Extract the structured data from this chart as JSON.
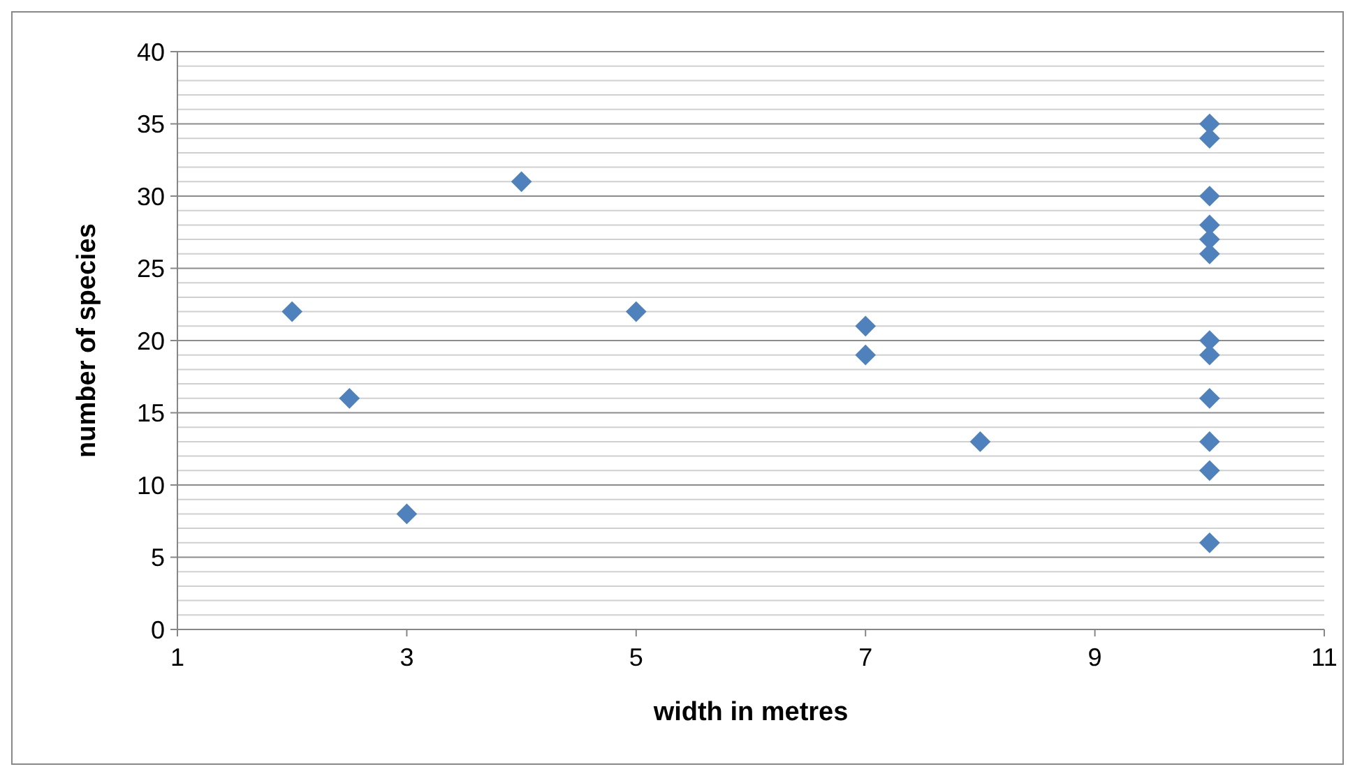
{
  "chart_data": {
    "type": "scatter",
    "xlabel": "width in metres",
    "ylabel": "number of species",
    "x": [
      2,
      2.5,
      3,
      4,
      5,
      7,
      7,
      8,
      10,
      10,
      10,
      10,
      10,
      10,
      10,
      10,
      10,
      10,
      10,
      10
    ],
    "series": [
      {
        "color": "#4f81bd",
        "values": [
          22,
          16,
          8,
          31,
          22,
          21,
          19,
          13,
          35,
          34,
          30,
          28,
          27,
          26,
          20,
          19,
          16,
          13,
          11,
          6
        ]
      }
    ],
    "xlim": [
      1,
      11
    ],
    "xticks": [
      1,
      3,
      5,
      7,
      9,
      11
    ],
    "ylim": [
      0,
      40
    ],
    "yticks": [
      0,
      {
        "value": 1,
        "label": null
      },
      {
        "value": 2,
        "label": null
      },
      {
        "value": 3,
        "label": null
      },
      {
        "value": 4,
        "label": null
      },
      5,
      {
        "value": 6,
        "label": null
      },
      {
        "value": 7,
        "label": null
      },
      {
        "value": 8,
        "label": null
      },
      {
        "value": 9,
        "label": null
      },
      10,
      {
        "value": 11,
        "label": null
      },
      {
        "value": 12,
        "label": null
      },
      {
        "value": 13,
        "label": null
      },
      {
        "value": 14,
        "label": null
      },
      15,
      {
        "value": 16,
        "label": null
      },
      {
        "value": 17,
        "label": null
      },
      {
        "value": 18,
        "label": null
      },
      {
        "value": 19,
        "label": null
      },
      20,
      {
        "value": 21,
        "label": null
      },
      {
        "value": 22,
        "label": null
      },
      {
        "value": 23,
        "label": null
      },
      {
        "value": 24,
        "label": null
      },
      25,
      {
        "value": 26,
        "label": null
      },
      {
        "value": 27,
        "label": null
      },
      {
        "value": 28,
        "label": null
      },
      {
        "value": 29,
        "label": null
      },
      30,
      {
        "value": 31,
        "label": null
      },
      {
        "value": 32,
        "label": null
      },
      {
        "value": 33,
        "label": null
      },
      {
        "value": 34,
        "label": null
      },
      35,
      {
        "value": 36,
        "label": null
      },
      {
        "value": 37,
        "label": null
      },
      {
        "value": 38,
        "label": null
      },
      {
        "value": 39,
        "label": null
      },
      40
    ],
    "grid": "y",
    "marker": "diamond"
  }
}
